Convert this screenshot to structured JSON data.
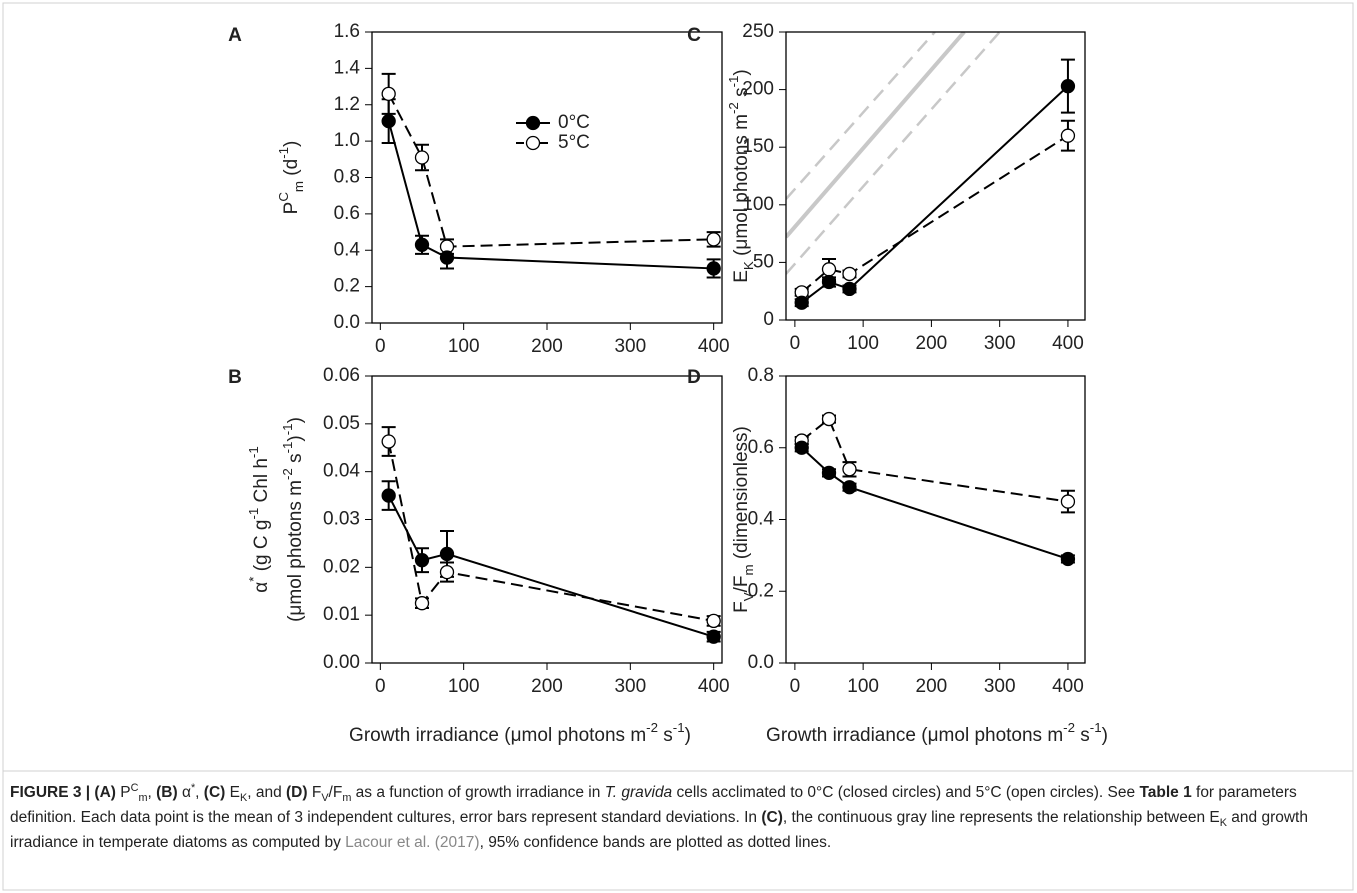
{
  "chart_data": [
    {
      "type": "line",
      "panel": "A",
      "y_label_lines": [
        [
          {
            "text": "P"
          },
          {
            "text": "C",
            "style": "sup"
          },
          {
            "text": "m",
            "style": "sub"
          },
          {
            "text": " (d"
          },
          {
            "text": "-1",
            "style": "sup"
          },
          {
            "text": ")"
          }
        ]
      ],
      "x": [
        10,
        50,
        80,
        400
      ],
      "xlim": [
        -10,
        410
      ],
      "xticks": [
        0,
        100,
        200,
        300,
        400
      ],
      "ylim": [
        0,
        1.6
      ],
      "yticks": [
        {
          "value": 0,
          "label": "0.0"
        },
        0.2,
        0.4,
        0.6,
        0.8,
        {
          "value": 1,
          "label": "1.0"
        },
        1.2,
        1.4,
        1.6
      ],
      "legend": true,
      "series": [
        {
          "name": "0°C",
          "color": "#000000",
          "marker": "filled",
          "dash": false,
          "values": [
            1.11,
            0.43,
            0.36,
            0.3
          ],
          "errors": [
            0.12,
            0.05,
            0.06,
            0.05
          ]
        },
        {
          "name": "5°C",
          "color": "#000000",
          "marker": "open",
          "dash": true,
          "values": [
            1.26,
            0.91,
            0.42,
            0.46
          ],
          "errors": [
            0.11,
            0.07,
            0.04,
            0.04
          ]
        }
      ]
    },
    {
      "type": "line",
      "panel": "B",
      "y_label_lines": [
        [
          {
            "text": "α"
          },
          {
            "text": "*",
            "style": "sup"
          },
          {
            "text": "  (g C g"
          },
          {
            "text": "-1",
            "style": "sup"
          },
          {
            "text": " Chl h"
          },
          {
            "text": "-1",
            "style": "sup"
          }
        ],
        [
          {
            "text": "(μmol photons m"
          },
          {
            "text": "-2",
            "style": "sup"
          },
          {
            "text": " s"
          },
          {
            "text": "-1",
            "style": "sup"
          },
          {
            "text": ")"
          },
          {
            "text": "-1",
            "style": "sup"
          },
          {
            "text": ")"
          }
        ]
      ],
      "x_label": [
        {
          "text": "Growth irradiance (μmol photons m"
        },
        {
          "text": "-2",
          "style": "sup"
        },
        {
          "text": " s"
        },
        {
          "text": "-1",
          "style": "sup"
        },
        {
          "text": ")"
        }
      ],
      "x": [
        10,
        50,
        80,
        400
      ],
      "xlim": [
        -10,
        410
      ],
      "xticks": [
        0,
        100,
        200,
        300,
        400
      ],
      "ylim": [
        0,
        0.06
      ],
      "yticks": [
        {
          "value": 0,
          "label": "0.00"
        },
        0.01,
        0.02,
        0.03,
        0.04,
        0.05,
        0.06
      ],
      "series": [
        {
          "color": "#000000",
          "marker": "filled",
          "dash": false,
          "values": [
            0.035,
            0.0215,
            0.0228,
            0.0055
          ],
          "errors": [
            0.003,
            0.0025,
            0.0048,
            0.001
          ]
        },
        {
          "color": "#000000",
          "marker": "open",
          "dash": true,
          "values": [
            0.0463,
            0.0125,
            0.019,
            0.0088
          ],
          "errors": [
            0.003,
            0.001,
            0.002,
            0.001
          ]
        }
      ]
    },
    {
      "type": "line",
      "panel": "C",
      "y_label_lines": [
        [
          {
            "text": "E"
          },
          {
            "text": "K",
            "style": "sub"
          },
          {
            "text": " (μmol photons m"
          },
          {
            "text": "-2",
            "style": "sup"
          },
          {
            "text": " s"
          },
          {
            "text": "-1",
            "style": "sup"
          },
          {
            "text": ")"
          }
        ]
      ],
      "x": [
        10,
        50,
        80,
        400
      ],
      "xlim": [
        -13,
        425
      ],
      "xticks": [
        0,
        100,
        200,
        300,
        400
      ],
      "ylim": [
        0,
        250
      ],
      "yticks": [
        0,
        50,
        100,
        150,
        200,
        250
      ],
      "reference_lines": [
        {
          "x": [
            -13,
            248
          ],
          "values": [
            72,
            250
          ],
          "color": "#c8c8c8",
          "dash": false
        },
        {
          "x": [
            -13,
            205
          ],
          "values": [
            105,
            250
          ],
          "color": "#c8c8c8",
          "dash": true
        },
        {
          "x": [
            -13,
            300
          ],
          "values": [
            40,
            250
          ],
          "color": "#c8c8c8",
          "dash": true
        }
      ],
      "series": [
        {
          "color": "#000000",
          "marker": "filled",
          "dash": false,
          "values": [
            15,
            33,
            27,
            203
          ],
          "errors": [
            3,
            4,
            3,
            23
          ]
        },
        {
          "color": "#000000",
          "marker": "open",
          "dash": true,
          "values": [
            24,
            44,
            40,
            160
          ],
          "errors": [
            3,
            9,
            3,
            13
          ]
        }
      ]
    },
    {
      "type": "line",
      "panel": "D",
      "y_label_lines": [
        [
          {
            "text": "F"
          },
          {
            "text": "V",
            "style": "sub"
          },
          {
            "text": "/F"
          },
          {
            "text": "m",
            "style": "sub"
          },
          {
            "text": " (dimensionless)"
          }
        ]
      ],
      "x_label": [
        {
          "text": "Growth irradiance (μmol photons m"
        },
        {
          "text": "-2",
          "style": "sup"
        },
        {
          "text": " s"
        },
        {
          "text": "-1",
          "style": "sup"
        },
        {
          "text": ")"
        }
      ],
      "x": [
        10,
        50,
        80,
        400
      ],
      "xlim": [
        -13,
        425
      ],
      "xticks": [
        0,
        100,
        200,
        300,
        400
      ],
      "ylim": [
        0,
        0.8
      ],
      "yticks": [
        {
          "value": 0,
          "label": "0.0"
        },
        0.2,
        0.4,
        0.6,
        0.8
      ],
      "series": [
        {
          "color": "#000000",
          "marker": "filled",
          "dash": false,
          "values": [
            0.6,
            0.53,
            0.49,
            0.29
          ],
          "errors": [
            0.01,
            0.01,
            0.01,
            0.01
          ]
        },
        {
          "color": "#000000",
          "marker": "open",
          "dash": true,
          "values": [
            0.62,
            0.68,
            0.54,
            0.45
          ],
          "errors": [
            0.01,
            0.01,
            0.02,
            0.03
          ]
        }
      ]
    }
  ],
  "caption": [
    {
      "text": "FIGURE 3 | (A)",
      "style": "bold"
    },
    {
      "text": " P"
    },
    {
      "text": "C",
      "style": "sup"
    },
    {
      "text": "m",
      "style": "sub"
    },
    {
      "text": ", "
    },
    {
      "text": "(B)",
      "style": "bold"
    },
    {
      "text": " α"
    },
    {
      "text": "*",
      "style": "sup"
    },
    {
      "text": ", "
    },
    {
      "text": "(C)",
      "style": "bold"
    },
    {
      "text": " E"
    },
    {
      "text": "K",
      "style": "sub"
    },
    {
      "text": ", and "
    },
    {
      "text": "(D)",
      "style": "bold"
    },
    {
      "text": " F"
    },
    {
      "text": "V",
      "style": "sub"
    },
    {
      "text": "/F"
    },
    {
      "text": "m",
      "style": "sub"
    },
    {
      "text": " as a function of growth irradiance in "
    },
    {
      "text": "T. gravida",
      "style": "italic"
    },
    {
      "text": " cells acclimated to 0°C (closed circles) and 5°C (open circles). See "
    },
    {
      "text": "Table 1",
      "style": "bold"
    },
    {
      "text": " for parameters definition. Each data point is the mean of 3 independent cultures, error bars represent standard deviations. In "
    },
    {
      "text": "(C)",
      "style": "bold"
    },
    {
      "text": ", the continuous gray line represents the relationship between E"
    },
    {
      "text": "K",
      "style": "sub"
    },
    {
      "text": " and growth irradiance in temperate diatoms as computed by "
    },
    {
      "text": "Lacour et al. (2017)",
      "style": "link"
    },
    {
      "text": ", 95% confidence bands are plotted as dotted lines."
    }
  ]
}
